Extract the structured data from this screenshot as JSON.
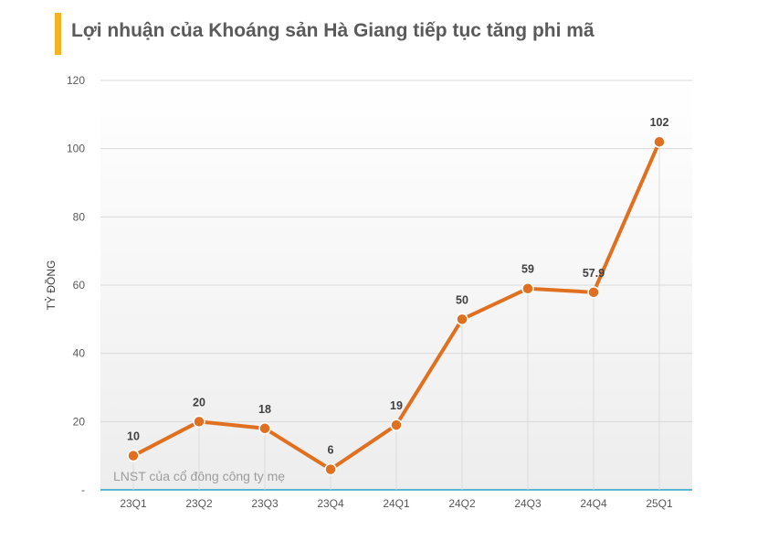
{
  "header": {
    "title": "Lợi nhuận của Khoáng sản Hà Giang tiếp tục tăng phi mã"
  },
  "colors": {
    "accent_bar": "#f5b324",
    "line": "#e07020",
    "axis_line": "#2aa0c8",
    "grid": "#d9d9d9"
  },
  "chart_data": {
    "type": "line",
    "title": "Lợi nhuận của Khoáng sản Hà Giang tiếp tục tăng phi mã",
    "xlabel": "",
    "ylabel": "TỶ ĐỒNG",
    "categories": [
      "23Q1",
      "23Q2",
      "23Q3",
      "23Q4",
      "24Q1",
      "24Q2",
      "24Q3",
      "24Q4",
      "25Q1"
    ],
    "series": [
      {
        "name": "LNST của cổ đông công ty mẹ",
        "values": [
          10,
          20,
          18,
          6,
          19,
          50,
          59,
          57.9,
          102
        ],
        "data_labels": [
          "10",
          "20",
          "18",
          "6",
          "19",
          "50",
          "59",
          "57.9",
          "102"
        ]
      }
    ],
    "ylim": [
      0,
      120
    ],
    "yticks": [
      0,
      20,
      40,
      60,
      80,
      100,
      120
    ],
    "ytick_labels": [
      "-",
      "20",
      "40",
      "60",
      "80",
      "100",
      "120"
    ],
    "grid": true,
    "legend_position": "bottom-left inside plot"
  }
}
